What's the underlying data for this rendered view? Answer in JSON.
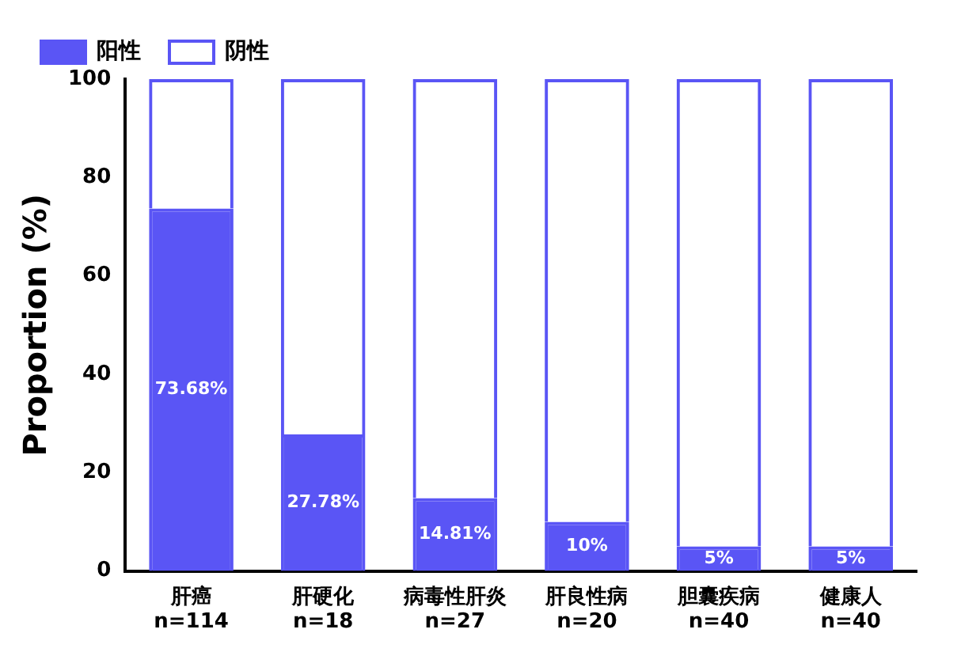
{
  "chart_data": {
    "type": "bar",
    "stacked": true,
    "ylabel": "Proportion (%)",
    "categories": [
      "肝癌\nn=114",
      "肝硬化\nn=18",
      "病毒性肝炎\nn=27",
      "肝良性病\nn=20",
      "胆囊疾病\nn=40",
      "健康人\nn=40"
    ],
    "series": [
      {
        "name": "阳性",
        "color": "#5a55f5",
        "values": [
          73.68,
          27.78,
          14.81,
          10,
          5,
          5
        ],
        "value_labels": [
          "73.68%",
          "27.78%",
          "14.81%",
          "10%",
          "5%",
          "5%"
        ]
      },
      {
        "name": "阴性",
        "color": "#5a55f5",
        "values": [
          26.32,
          72.22,
          85.19,
          90,
          95,
          95
        ]
      }
    ],
    "ylim": [
      0,
      100
    ],
    "yticks": [
      0,
      20,
      40,
      60,
      80,
      100
    ],
    "grid": false,
    "legend": "top left"
  }
}
